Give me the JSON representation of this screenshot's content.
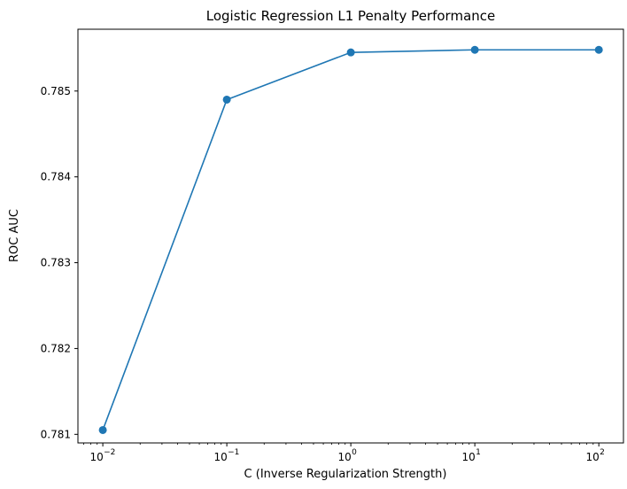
{
  "chart_data": {
    "type": "line",
    "title": "Logistic Regression L1 Penalty Performance",
    "xlabel": "C (Inverse Regularization Strength)",
    "ylabel": "ROC AUC",
    "xscale": "log",
    "x": [
      0.01,
      0.1,
      1,
      10,
      100
    ],
    "xlim": [
      0.0063,
      158
    ],
    "ylim": [
      0.7809,
      0.78572
    ],
    "series": [
      {
        "values": [
          0.78105,
          0.7849,
          0.78545,
          0.78548,
          0.78548
        ],
        "color": "#1f77b4",
        "marker": "circle"
      }
    ],
    "x_ticks": [
      {
        "value": 0.01,
        "base": "10",
        "exp": "−2"
      },
      {
        "value": 0.1,
        "base": "10",
        "exp": "−1"
      },
      {
        "value": 1,
        "base": "10",
        "exp": "0"
      },
      {
        "value": 10,
        "base": "10",
        "exp": "1"
      },
      {
        "value": 100,
        "base": "10",
        "exp": "2"
      }
    ],
    "y_ticks": [
      {
        "value": 0.781,
        "label": "0.781"
      },
      {
        "value": 0.782,
        "label": "0.782"
      },
      {
        "value": 0.783,
        "label": "0.783"
      },
      {
        "value": 0.784,
        "label": "0.784"
      },
      {
        "value": 0.785,
        "label": "0.785"
      }
    ],
    "grid": false,
    "legend": "none"
  }
}
